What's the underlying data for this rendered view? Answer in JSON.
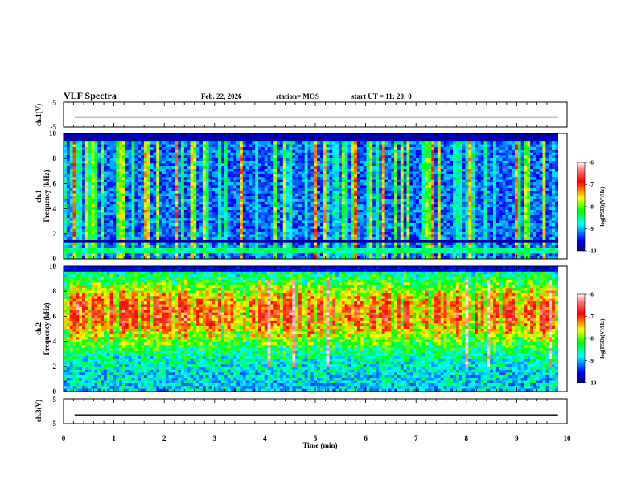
{
  "header": {
    "title": "VLF Spectra",
    "date": "Feb. 22, 2026",
    "station": "station= MOS",
    "start": "start  UT =   11: 20: 0"
  },
  "chart_data": [
    {
      "id": "ch1-voltage",
      "type": "line",
      "ylabel": "ch.1(V)",
      "ylim": [
        -5,
        5
      ],
      "ytick_labels": [
        "5",
        "-5"
      ],
      "xlim": [
        0,
        10
      ],
      "series": [
        {
          "name": "ch.1 voltage",
          "x": [
            0.22,
            9.82
          ],
          "y": [
            -1.0,
            -1.0
          ]
        }
      ]
    },
    {
      "id": "ch1-spectrogram",
      "type": "heatmap",
      "ylabel": "ch.1\nFrequency (kHz)",
      "ylim": [
        0,
        10
      ],
      "ytick_labels": [
        "0",
        "2",
        "4",
        "6",
        "8",
        "10"
      ],
      "xlim": [
        0,
        10
      ],
      "data_xlim": [
        0,
        9.82
      ],
      "colorbar": {
        "label": "log(PSD)(V²/Hz)",
        "range": [
          -10,
          -6
        ],
        "tick_labels": [
          "-6",
          "-7",
          "-8",
          "-9",
          "-10"
        ]
      },
      "dominant_level": -9.2
    },
    {
      "id": "ch2-spectrogram",
      "type": "heatmap",
      "ylabel": "ch.2\nFrequency (kHz)",
      "ylim": [
        0,
        10
      ],
      "ytick_labels": [
        "0",
        "2",
        "4",
        "6",
        "8",
        "10"
      ],
      "xlim": [
        0,
        10
      ],
      "data_xlim": [
        0,
        9.82
      ],
      "colorbar": {
        "label": "log(PSD)(V²/Hz)",
        "range": [
          -10,
          -6
        ],
        "tick_labels": [
          "-6",
          "-7",
          "-8",
          "-9",
          "-10"
        ]
      },
      "dominant_level": -6.8
    },
    {
      "id": "ch3-voltage",
      "type": "line",
      "ylabel": "ch.3(V)",
      "ylim": [
        -5,
        5
      ],
      "ytick_labels": [
        "5",
        "-5"
      ],
      "xlim": [
        0,
        10
      ],
      "xlabel": "Time (min)",
      "xtick_labels": [
        "0",
        "1",
        "2",
        "3",
        "4",
        "5",
        "6",
        "7",
        "8",
        "9",
        "10"
      ],
      "series": [
        {
          "name": "ch.3 voltage",
          "x": [
            0.22,
            9.82
          ],
          "y": [
            -1.5,
            -1.5
          ]
        }
      ]
    }
  ]
}
